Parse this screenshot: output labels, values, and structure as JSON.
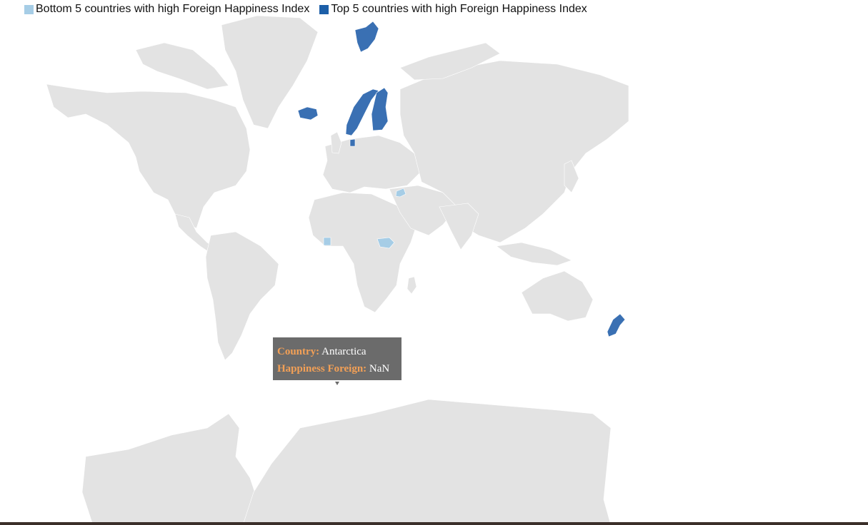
{
  "legend": {
    "items": [
      {
        "label": "Bottom 5 countries with high Foreign Happiness Index",
        "color": "#a6cde6"
      },
      {
        "label": "Top 5 countries with high Foreign Happiness Index",
        "color": "#1c5fa8"
      }
    ]
  },
  "map": {
    "base_color": "#e3e3e3",
    "top_color": "#3a70b3",
    "bottom_color": "#a6cde6",
    "top_countries_shown": [
      "Norway",
      "Finland",
      "Iceland",
      "Denmark",
      "New Zealand"
    ],
    "bottom_countries_shown": [
      "Syria",
      "Togo",
      "South Sudan"
    ]
  },
  "tooltip": {
    "country_key": "Country:",
    "country_value": "Antarctica",
    "happiness_key": "Happiness Foreign:",
    "happiness_value": "NaN"
  }
}
